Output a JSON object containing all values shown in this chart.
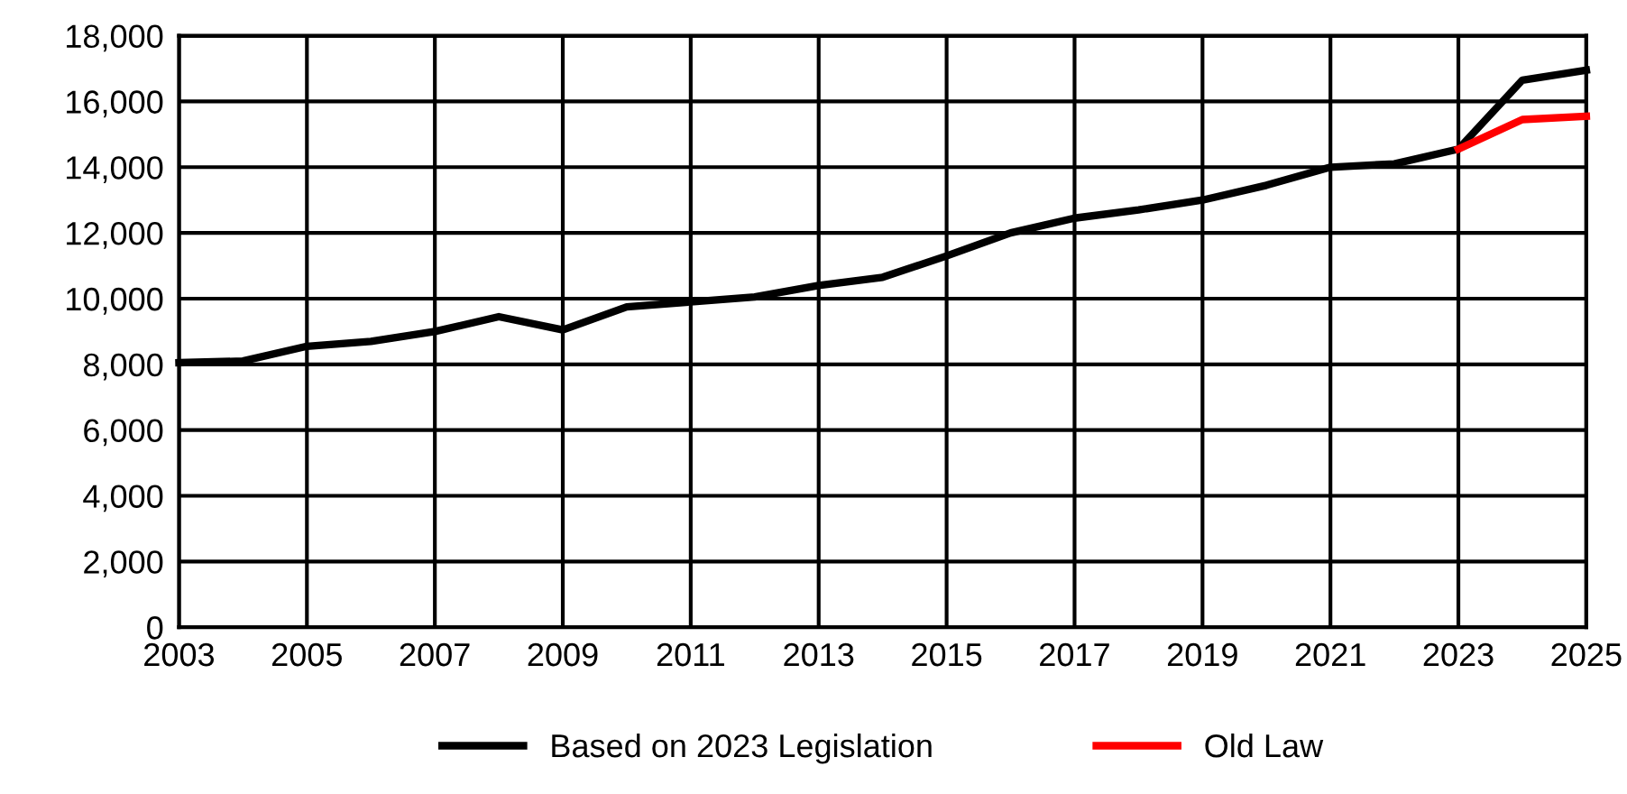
{
  "chart_data": {
    "type": "line",
    "series": [
      {
        "name": "Based on 2023 Legislation",
        "color": "#000000",
        "x": [
          2003,
          2004,
          2005,
          2006,
          2007,
          2008,
          2009,
          2010,
          2011,
          2012,
          2013,
          2014,
          2015,
          2016,
          2017,
          2018,
          2019,
          2020,
          2021,
          2022,
          2023,
          2024,
          2025
        ],
        "values": [
          8050,
          8100,
          8550,
          8700,
          9000,
          9450,
          9050,
          9750,
          9900,
          10050,
          10400,
          10650,
          11300,
          12000,
          12450,
          12700,
          13000,
          13450,
          14000,
          14100,
          14550,
          16650,
          16950
        ]
      },
      {
        "name": "Old Law",
        "color": "#ff0000",
        "x": [
          2023,
          2024,
          2025
        ],
        "values": [
          14550,
          15450,
          15550
        ]
      }
    ],
    "xlim": [
      2003,
      2025
    ],
    "xticks": [
      2003,
      2005,
      2007,
      2009,
      2011,
      2013,
      2015,
      2017,
      2019,
      2021,
      2023,
      2025
    ],
    "ylim": [
      0,
      18000
    ],
    "yticks": [
      {
        "value": 0,
        "label": "0"
      },
      {
        "value": 2000,
        "label": "2,000"
      },
      {
        "value": 4000,
        "label": "4,000"
      },
      {
        "value": 6000,
        "label": "6,000"
      },
      {
        "value": 8000,
        "label": "8,000"
      },
      {
        "value": 10000,
        "label": "10,000"
      },
      {
        "value": 12000,
        "label": "12,000"
      },
      {
        "value": 14000,
        "label": "14,000"
      },
      {
        "value": 16000,
        "label": "16,000"
      },
      {
        "value": 18000,
        "label": "18,000"
      }
    ],
    "grid": true,
    "legend": "bottom",
    "marker": "none",
    "line_style": "solid"
  }
}
